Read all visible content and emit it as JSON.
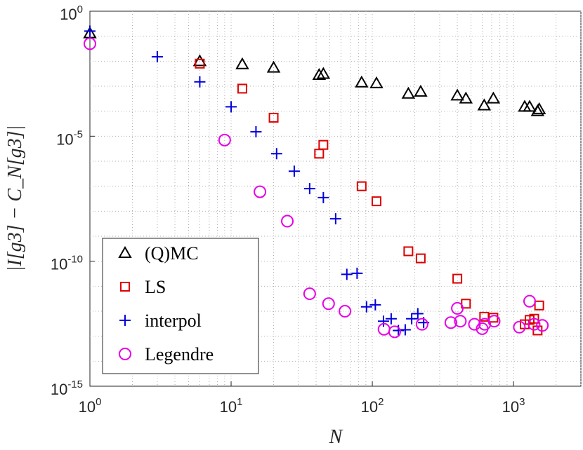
{
  "chart_data": {
    "type": "scatter",
    "title": "",
    "xlabel": "N",
    "ylabel": "|I[g3] − C_N[g3]|",
    "xscale": "log",
    "yscale": "log",
    "xlim": [
      1,
      3000
    ],
    "ylim": [
      1e-15,
      1
    ],
    "grid": true,
    "legend_position": "bottom-left",
    "x_ticks": [
      {
        "value": 1,
        "base": "10",
        "exp": "0"
      },
      {
        "value": 10,
        "base": "10",
        "exp": "1"
      },
      {
        "value": 100,
        "base": "10",
        "exp": "2"
      },
      {
        "value": 1000,
        "base": "10",
        "exp": "3"
      }
    ],
    "y_ticks": [
      {
        "value": 1,
        "base": "10",
        "exp": "0"
      },
      {
        "value": 1e-05,
        "base": "10",
        "exp": "-5"
      },
      {
        "value": 1e-10,
        "base": "10",
        "exp": "-10"
      },
      {
        "value": 1e-15,
        "base": "10",
        "exp": "-15"
      }
    ],
    "series": [
      {
        "name": "(Q)MC",
        "marker": "triangle",
        "color": "#000000",
        "points": [
          [
            1,
            0.13
          ],
          [
            6,
            0.01
          ],
          [
            12,
            0.0075
          ],
          [
            20,
            0.0055
          ],
          [
            42,
            0.0028
          ],
          [
            45,
            0.0031
          ],
          [
            84,
            0.0014
          ],
          [
            107,
            0.0013
          ],
          [
            180,
            0.0005
          ],
          [
            220,
            0.0006
          ],
          [
            400,
            0.00042
          ],
          [
            460,
            0.00032
          ],
          [
            620,
            0.00017
          ],
          [
            720,
            0.00032
          ],
          [
            1200,
            0.00015
          ],
          [
            1300,
            0.00015
          ],
          [
            1480,
            0.0001
          ],
          [
            1520,
            0.00012
          ]
        ]
      },
      {
        "name": "LS",
        "marker": "square",
        "color": "#dd0000",
        "points": [
          [
            6,
            0.008
          ],
          [
            12,
            0.0008
          ],
          [
            20,
            5.5e-05
          ],
          [
            42,
            2e-06
          ],
          [
            45,
            4.5e-06
          ],
          [
            84,
            1e-07
          ],
          [
            107,
            2.5e-08
          ],
          [
            180,
            2.5e-10
          ],
          [
            220,
            1.3e-10
          ],
          [
            400,
            2e-11
          ],
          [
            460,
            2e-12
          ],
          [
            620,
            6e-13
          ],
          [
            720,
            5.5e-13
          ],
          [
            1200,
            3e-13
          ],
          [
            1300,
            4.5e-13
          ],
          [
            1400,
            5e-13
          ],
          [
            1480,
            1.7e-13
          ],
          [
            1520,
            1.7e-12
          ]
        ]
      },
      {
        "name": "interpol",
        "marker": "plus",
        "color": "#0000dd",
        "points": [
          [
            1,
            0.16
          ],
          [
            3,
            0.015
          ],
          [
            6,
            0.0015
          ],
          [
            10,
            0.00015
          ],
          [
            15,
            1.5e-05
          ],
          [
            21,
            2e-06
          ],
          [
            28,
            4e-07
          ],
          [
            36,
            8e-08
          ],
          [
            45,
            3.5e-08
          ],
          [
            55,
            5e-09
          ],
          [
            66,
            3e-11
          ],
          [
            78,
            3.3e-11
          ],
          [
            91,
            1.5e-12
          ],
          [
            105,
            1.8e-12
          ],
          [
            120,
            4e-13
          ],
          [
            136,
            5e-13
          ],
          [
            153,
            1.7e-13
          ],
          [
            171,
            1.8e-13
          ],
          [
            190,
            5e-13
          ],
          [
            210,
            8e-13
          ],
          [
            231,
            3.5e-13
          ]
        ]
      },
      {
        "name": "Legendre",
        "marker": "circle",
        "color": "#e600e6",
        "points": [
          [
            1,
            0.05
          ],
          [
            9,
            7e-06
          ],
          [
            16,
            6e-08
          ],
          [
            25,
            4e-09
          ],
          [
            36,
            5e-12
          ],
          [
            49,
            2e-12
          ],
          [
            64,
            1e-12
          ],
          [
            121,
            1.9e-13
          ],
          [
            144,
            1.5e-13
          ],
          [
            225,
            3e-13
          ],
          [
            360,
            3.5e-13
          ],
          [
            400,
            1.3e-12
          ],
          [
            420,
            4e-13
          ],
          [
            529,
            3e-13
          ],
          [
            600,
            2e-13
          ],
          [
            625,
            3e-13
          ],
          [
            729,
            4e-13
          ],
          [
            1100,
            2.3e-13
          ],
          [
            1300,
            2.5e-12
          ],
          [
            1400,
            3e-13
          ],
          [
            1600,
            2.7e-13
          ]
        ]
      }
    ]
  }
}
